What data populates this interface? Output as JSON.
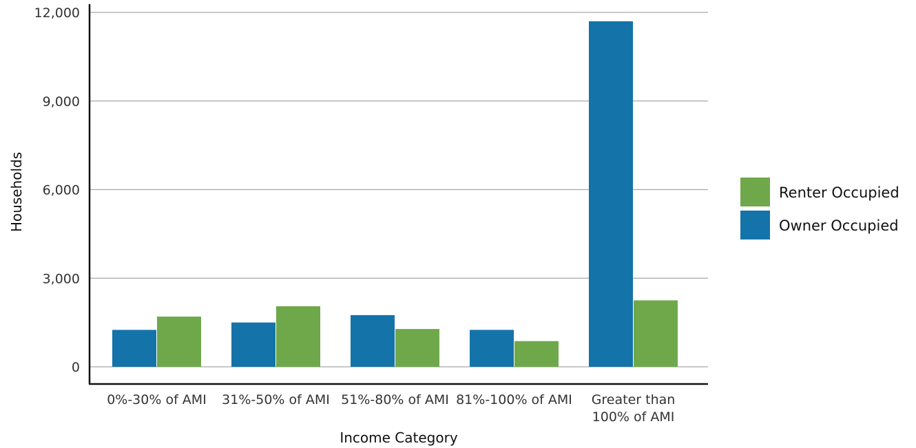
{
  "chart_data": {
    "type": "bar",
    "xlabel": "Income Category",
    "ylabel": "Households",
    "ylim": [
      0,
      12000
    ],
    "yticks": [
      0,
      3000,
      6000,
      9000,
      12000
    ],
    "ytick_labels": [
      "0",
      "3,000",
      "6,000",
      "9,000",
      "12,000"
    ],
    "grid": true,
    "categories": [
      [
        "0%-30% of AMI"
      ],
      [
        "31%-50% of AMI"
      ],
      [
        "51%-80% of AMI"
      ],
      [
        "81%-100% of AMI"
      ],
      [
        "Greater than",
        "100% of AMI"
      ]
    ],
    "series": [
      {
        "name": "Owner Occupied",
        "color": "#1473a9",
        "values": [
          1250,
          1500,
          1750,
          1250,
          11700
        ]
      },
      {
        "name": "Renter Occupied",
        "color": "#6fa84b",
        "values": [
          1700,
          2050,
          1280,
          870,
          2250
        ]
      }
    ],
    "legend": {
      "position": "right",
      "order": [
        "Renter Occupied",
        "Owner Occupied"
      ]
    }
  }
}
